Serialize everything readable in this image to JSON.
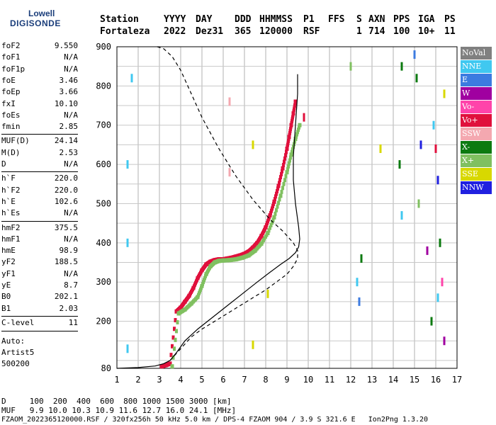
{
  "logo": {
    "line1": "Lowell",
    "line2": "DIGISONDE"
  },
  "header": {
    "labels": [
      "Station",
      "YYYY",
      "DAY",
      "DDD",
      "HHMMSS",
      "P1",
      "FFS",
      "S",
      "AXN",
      "PPS",
      "IGA",
      "PS"
    ],
    "values": [
      "Fortaleza",
      "2022",
      "Dez31",
      "365",
      "120000",
      "RSF",
      "1",
      "714",
      "100",
      "10+",
      "11"
    ]
  },
  "params": [
    {
      "name": "foF2",
      "value": "9.550"
    },
    {
      "name": "foF1",
      "value": "N/A"
    },
    {
      "name": "foF1p",
      "value": "N/A"
    },
    {
      "name": "foE",
      "value": "3.46"
    },
    {
      "name": "foEp",
      "value": "3.66"
    },
    {
      "name": "fxI",
      "value": "10.10"
    },
    {
      "name": "foEs",
      "value": "N/A"
    },
    {
      "name": "fmin",
      "value": "2.85"
    },
    {
      "name": "MUF(D)",
      "value": "24.14"
    },
    {
      "name": "M(D)",
      "value": "2.53"
    },
    {
      "name": "D",
      "value": "N/A"
    },
    {
      "name": "h`F",
      "value": "220.0"
    },
    {
      "name": "h`F2",
      "value": "220.0"
    },
    {
      "name": "h`E",
      "value": "102.6"
    },
    {
      "name": "h`Es",
      "value": "N/A"
    },
    {
      "name": "hmF2",
      "value": "375.5"
    },
    {
      "name": "hmF1",
      "value": "N/A"
    },
    {
      "name": "hmE",
      "value": "98.9"
    },
    {
      "name": "yF2",
      "value": "188.5"
    },
    {
      "name": "yF1",
      "value": "N/A"
    },
    {
      "name": "yE",
      "value": "8.7"
    },
    {
      "name": "B0",
      "value": "202.1"
    },
    {
      "name": "B1",
      "value": "2.03"
    },
    {
      "name": "C-level",
      "value": "11"
    }
  ],
  "auto": {
    "line1": "Auto:",
    "line2": "Artist5",
    "line3": "500200"
  },
  "legend": [
    {
      "label": "NoVal",
      "color": "#808080"
    },
    {
      "label": "NNE",
      "color": "#40c8f0"
    },
    {
      "label": "E",
      "color": "#3c7be0"
    },
    {
      "label": "W",
      "color": "#a000a0"
    },
    {
      "label": "Vo-",
      "color": "#ff44aa"
    },
    {
      "label": "Vo+",
      "color": "#e0103c"
    },
    {
      "label": "SSW",
      "color": "#f4a8b0"
    },
    {
      "label": "X-",
      "color": "#0c7a10"
    },
    {
      "label": "X+",
      "color": "#80c060"
    },
    {
      "label": "SSE",
      "color": "#d8d800"
    },
    {
      "label": "NNW",
      "color": "#2020e0"
    }
  ],
  "footer": {
    "d_row": "D     100  200  400  600  800 1000 1500 3000 [km]",
    "muf_row": "MUF   9.9 10.0 10.3 10.9 11.6 12.7 16.0 24.1 [MHz]",
    "info": "FZAOM_2022365120000.RSF / 320fx256h 50 kHz 5.0 km / DPS-4 FZAOM 904 / 3.9 S 321.6 E   Ion2Png 1.3.20"
  },
  "chart_data": {
    "type": "scatter",
    "x_ticks": [
      "1",
      "2",
      "3",
      "4",
      "5",
      "6",
      "7",
      "8",
      "9",
      "10",
      "11",
      "12",
      "13",
      "14",
      "15",
      "16",
      "17"
    ],
    "y_ticks": [
      "80",
      "200",
      "300",
      "400",
      "500",
      "600",
      "700",
      "800",
      "900"
    ],
    "xlim": [
      1,
      17
    ],
    "ylim": [
      80,
      900
    ],
    "grid": true,
    "series": [
      {
        "role": "trace-o-low",
        "color": "#e0103c",
        "x": [
          3.1,
          3.3,
          3.5,
          3.8,
          4.0,
          4.2,
          4.4,
          4.6,
          4.8,
          5.0,
          5.2,
          5.4,
          5.6,
          5.8,
          6.0,
          6.2,
          6.4,
          6.6,
          6.8,
          7.0,
          7.2,
          7.4,
          7.6,
          7.8,
          8.0,
          8.2,
          8.4,
          8.6,
          8.8,
          9.0,
          9.1,
          9.2,
          9.3,
          9.4
        ],
        "y": [
          85,
          88,
          92,
          225,
          235,
          250,
          265,
          285,
          310,
          330,
          345,
          352,
          356,
          358,
          358,
          360,
          362,
          365,
          368,
          372,
          378,
          388,
          400,
          418,
          440,
          470,
          505,
          545,
          590,
          640,
          670,
          700,
          730,
          760
        ]
      },
      {
        "role": "trace-x",
        "color": "#80c060",
        "x": [
          3.6,
          3.9,
          4.2,
          4.5,
          4.8,
          5.0,
          5.2,
          5.4,
          5.6,
          5.8,
          6.0,
          6.3,
          6.6,
          6.9,
          7.2,
          7.5,
          7.8,
          8.1,
          8.4,
          8.7,
          9.0,
          9.2,
          9.4,
          9.6
        ],
        "y": [
          85,
          220,
          230,
          245,
          262,
          290,
          320,
          340,
          350,
          354,
          355,
          356,
          358,
          362,
          368,
          380,
          398,
          425,
          465,
          520,
          580,
          625,
          665,
          700
        ]
      },
      {
        "role": "profile-solid",
        "color": "#000000",
        "x": [
          1.0,
          2.0,
          2.8,
          3.2,
          3.5,
          3.8,
          4.2,
          4.8,
          5.5,
          6.2,
          6.9,
          7.6,
          8.2,
          8.7,
          9.1,
          9.4,
          9.55,
          9.6,
          9.55,
          9.4,
          9.3,
          9.3,
          9.4,
          9.5,
          9.5
        ],
        "y": [
          80,
          82,
          86,
          92,
          100,
          120,
          150,
          180,
          210,
          240,
          270,
          300,
          325,
          345,
          360,
          375,
          390,
          410,
          440,
          500,
          560,
          620,
          700,
          780,
          830
        ]
      },
      {
        "role": "profile-dashed",
        "color": "#000000",
        "x": [
          3.5,
          4.0,
          4.5,
          5.0,
          5.6,
          6.2,
          6.8,
          7.4,
          8.0,
          8.5,
          9.0,
          9.3,
          9.5,
          9.5,
          9.3,
          8.8,
          8.2,
          7.4,
          6.6,
          5.8,
          5.0,
          4.5,
          4.0,
          3.6,
          3.2,
          2.9,
          2.8
        ],
        "y": [
          100,
          130,
          160,
          180,
          200,
          220,
          240,
          260,
          280,
          300,
          320,
          340,
          360,
          380,
          400,
          430,
          460,
          510,
          570,
          640,
          720,
          780,
          840,
          875,
          895,
          900,
          900
        ]
      }
    ]
  }
}
